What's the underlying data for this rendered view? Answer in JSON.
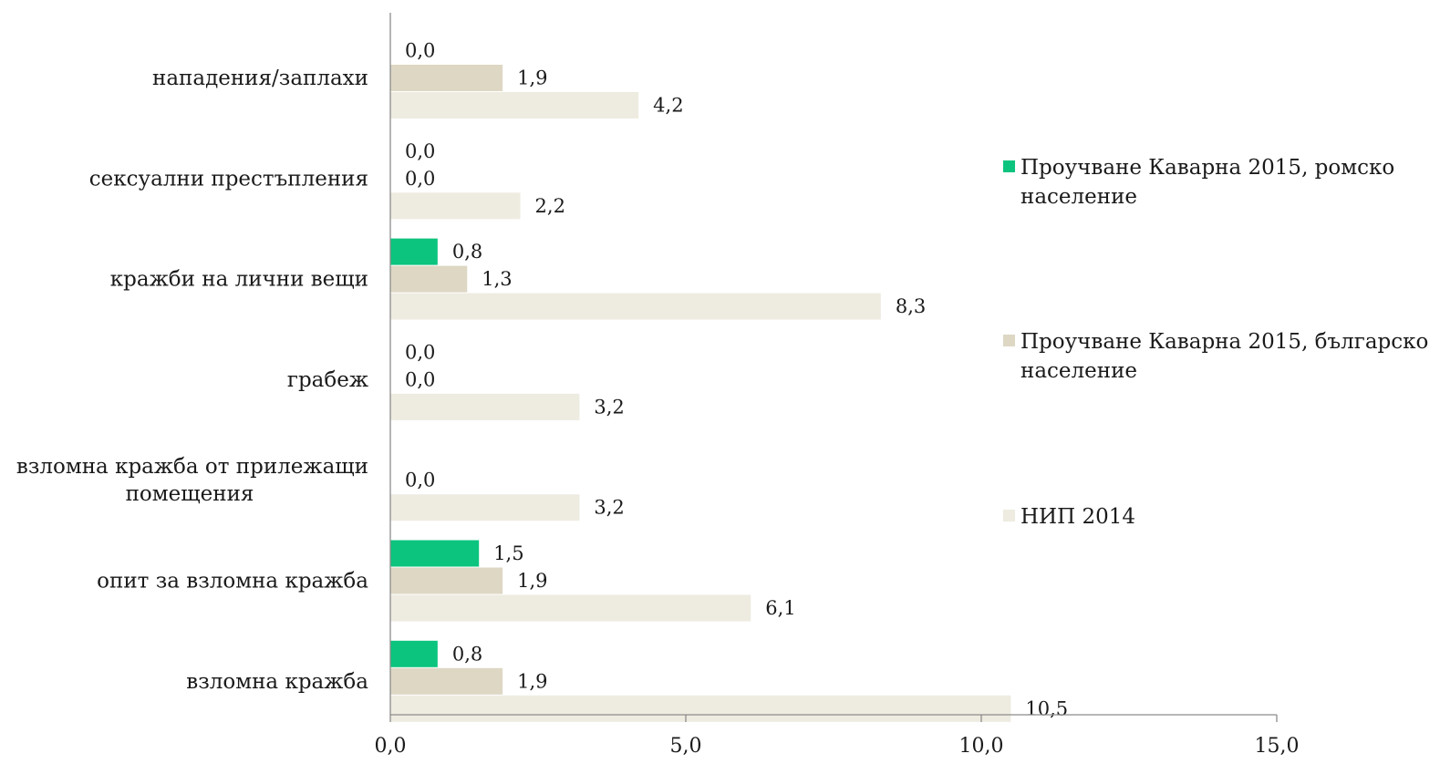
{
  "chart_data": {
    "type": "bar",
    "orientation": "horizontal",
    "categories": [
      [
        "нападения/заплахи"
      ],
      [
        "сексуални престъпления"
      ],
      [
        "кражби на лични вещи"
      ],
      [
        "грабеж"
      ],
      [
        "взломна кражба от прилежащи",
        "помещения"
      ],
      [
        "опит за взломна кражба"
      ],
      [
        "взломна кражба"
      ]
    ],
    "series": [
      {
        "name": "Проучване Каварна 2015, ромско население",
        "legend_lines": [
          "Проучване Каварна 2015, ромско",
          "население"
        ],
        "color": "#0cc47d",
        "values": [
          0.0,
          0.0,
          0.8,
          0.0,
          null,
          1.5,
          0.8
        ],
        "labels": [
          "0,0",
          "0,0",
          "0,8",
          "0,0",
          "",
          "1,5",
          "0,8"
        ]
      },
      {
        "name": "Проучване Каварна 2015, българско население",
        "legend_lines": [
          "Проучване Каварна 2015, българско",
          "население"
        ],
        "color": "#ddd7c4",
        "values": [
          1.9,
          0.0,
          1.3,
          0.0,
          0.0,
          1.9,
          1.9
        ],
        "labels": [
          "1,9",
          "0,0",
          "1,3",
          "0,0",
          "0,0",
          "1,9",
          "1,9"
        ]
      },
      {
        "name": "НИП 2014",
        "legend_lines": [
          "НИП 2014"
        ],
        "color": "#eeebe0",
        "values": [
          4.2,
          2.2,
          8.3,
          3.2,
          3.2,
          6.1,
          10.5
        ],
        "labels": [
          "4,2",
          "2,2",
          "8,3",
          "3,2",
          "3,2",
          "6,1",
          "10,5"
        ]
      }
    ],
    "xlim": [
      0,
      15
    ],
    "xticks": [
      0,
      5,
      10,
      15
    ],
    "xtick_labels": [
      "0,0",
      "5,0",
      "10,0",
      "15,0"
    ],
    "title": "",
    "xlabel": "",
    "ylabel": "",
    "grid": false,
    "legend_position": "right"
  }
}
